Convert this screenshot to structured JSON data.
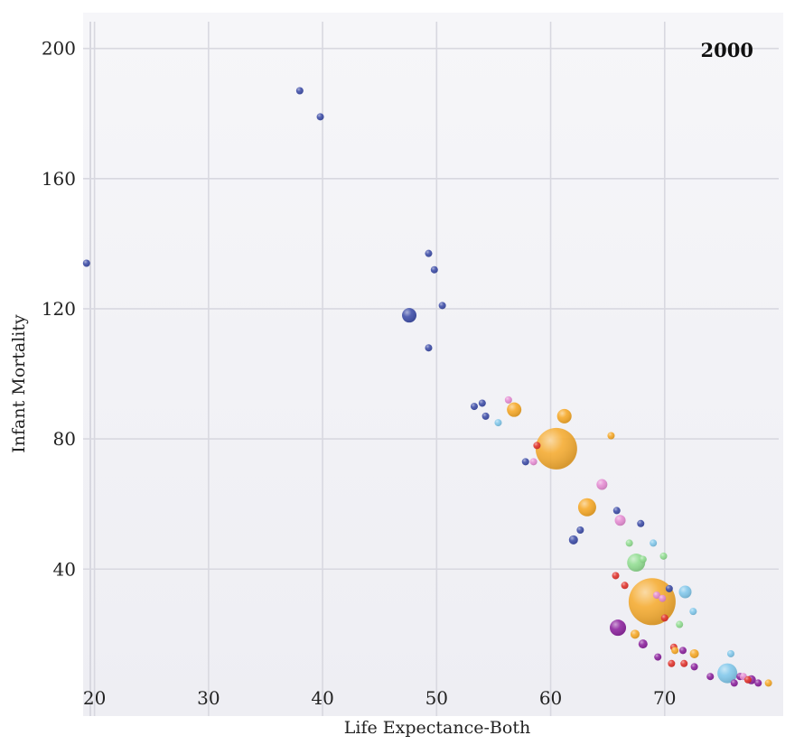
{
  "chart_data": {
    "type": "scatter",
    "title": "2000",
    "xlabel": "Life Expectance-Both",
    "ylabel": "Infant Mortality",
    "xlim": [
      19,
      80
    ],
    "ylim": [
      4,
      211
    ],
    "x_ticks": [
      20,
      30,
      40,
      50,
      60,
      70
    ],
    "y_ticks": [
      40,
      80,
      120,
      160,
      200
    ],
    "grid": true,
    "colors": {
      "blue": "#3a4aa6",
      "orange": "#f5a623",
      "red": "#e0302a",
      "pink": "#e58ad2",
      "lightblue": "#7ec6ea",
      "green": "#8fdc8f",
      "purple": "#8a1f9c",
      "plot_bg": "#f1f1f5",
      "grid": "#d8d8e0"
    },
    "points": [
      {
        "x": 19.3,
        "y": 134,
        "size": 4,
        "color": "blue"
      },
      {
        "x": 38.0,
        "y": 187,
        "size": 4,
        "color": "blue"
      },
      {
        "x": 39.8,
        "y": 179,
        "size": 4,
        "color": "blue"
      },
      {
        "x": 47.6,
        "y": 118,
        "size": 8,
        "color": "blue"
      },
      {
        "x": 49.3,
        "y": 137,
        "size": 4,
        "color": "blue"
      },
      {
        "x": 49.8,
        "y": 132,
        "size": 4,
        "color": "blue"
      },
      {
        "x": 50.5,
        "y": 121,
        "size": 4,
        "color": "blue"
      },
      {
        "x": 49.3,
        "y": 108,
        "size": 4,
        "color": "blue"
      },
      {
        "x": 53.3,
        "y": 90,
        "size": 4,
        "color": "blue"
      },
      {
        "x": 54.0,
        "y": 91,
        "size": 4,
        "color": "blue"
      },
      {
        "x": 54.3,
        "y": 87,
        "size": 4,
        "color": "blue"
      },
      {
        "x": 55.4,
        "y": 85,
        "size": 4,
        "color": "lightblue"
      },
      {
        "x": 56.3,
        "y": 92,
        "size": 4,
        "color": "pink"
      },
      {
        "x": 56.8,
        "y": 89,
        "size": 8,
        "color": "orange"
      },
      {
        "x": 61.2,
        "y": 87,
        "size": 8,
        "color": "orange"
      },
      {
        "x": 60.5,
        "y": 77,
        "size": 23,
        "color": "orange"
      },
      {
        "x": 58.8,
        "y": 78,
        "size": 4,
        "color": "red"
      },
      {
        "x": 57.8,
        "y": 73,
        "size": 4,
        "color": "blue"
      },
      {
        "x": 58.5,
        "y": 73,
        "size": 4,
        "color": "pink"
      },
      {
        "x": 65.3,
        "y": 81,
        "size": 4,
        "color": "orange"
      },
      {
        "x": 64.5,
        "y": 66,
        "size": 6,
        "color": "pink"
      },
      {
        "x": 63.2,
        "y": 59,
        "size": 10,
        "color": "orange"
      },
      {
        "x": 65.8,
        "y": 58,
        "size": 4,
        "color": "blue"
      },
      {
        "x": 66.1,
        "y": 55,
        "size": 6,
        "color": "pink"
      },
      {
        "x": 67.9,
        "y": 54,
        "size": 4,
        "color": "blue"
      },
      {
        "x": 62.6,
        "y": 52,
        "size": 4,
        "color": "blue"
      },
      {
        "x": 62.0,
        "y": 49,
        "size": 5,
        "color": "blue"
      },
      {
        "x": 66.9,
        "y": 48,
        "size": 4,
        "color": "green"
      },
      {
        "x": 69.0,
        "y": 48,
        "size": 4,
        "color": "lightblue"
      },
      {
        "x": 69.9,
        "y": 44,
        "size": 4,
        "color": "green"
      },
      {
        "x": 67.5,
        "y": 42,
        "size": 10,
        "color": "green"
      },
      {
        "x": 68.1,
        "y": 43,
        "size": 4,
        "color": "green"
      },
      {
        "x": 65.7,
        "y": 38,
        "size": 4,
        "color": "red"
      },
      {
        "x": 66.5,
        "y": 35,
        "size": 4,
        "color": "red"
      },
      {
        "x": 70.4,
        "y": 34,
        "size": 4,
        "color": "blue"
      },
      {
        "x": 71.8,
        "y": 33,
        "size": 7,
        "color": "lightblue"
      },
      {
        "x": 69.3,
        "y": 32,
        "size": 4,
        "color": "pink"
      },
      {
        "x": 69.8,
        "y": 31,
        "size": 4,
        "color": "pink"
      },
      {
        "x": 68.9,
        "y": 30,
        "size": 26,
        "color": "orange"
      },
      {
        "x": 72.5,
        "y": 27,
        "size": 4,
        "color": "lightblue"
      },
      {
        "x": 70.0,
        "y": 25,
        "size": 4,
        "color": "red"
      },
      {
        "x": 71.3,
        "y": 23,
        "size": 4,
        "color": "green"
      },
      {
        "x": 65.9,
        "y": 22,
        "size": 9,
        "color": "purple"
      },
      {
        "x": 67.4,
        "y": 20,
        "size": 5,
        "color": "orange"
      },
      {
        "x": 68.1,
        "y": 17,
        "size": 5,
        "color": "purple"
      },
      {
        "x": 70.8,
        "y": 16,
        "size": 4,
        "color": "red"
      },
      {
        "x": 70.9,
        "y": 15,
        "size": 4,
        "color": "orange"
      },
      {
        "x": 71.6,
        "y": 15,
        "size": 4,
        "color": "purple"
      },
      {
        "x": 72.6,
        "y": 14,
        "size": 5,
        "color": "orange"
      },
      {
        "x": 69.4,
        "y": 13,
        "size": 4,
        "color": "purple"
      },
      {
        "x": 75.8,
        "y": 14,
        "size": 4,
        "color": "lightblue"
      },
      {
        "x": 70.6,
        "y": 11,
        "size": 4,
        "color": "red"
      },
      {
        "x": 71.7,
        "y": 11,
        "size": 4,
        "color": "red"
      },
      {
        "x": 72.6,
        "y": 10,
        "size": 4,
        "color": "purple"
      },
      {
        "x": 75.5,
        "y": 8,
        "size": 11,
        "color": "lightblue"
      },
      {
        "x": 74.0,
        "y": 7,
        "size": 4,
        "color": "purple"
      },
      {
        "x": 76.6,
        "y": 7,
        "size": 4,
        "color": "purple"
      },
      {
        "x": 76.9,
        "y": 7,
        "size": 4,
        "color": "pink"
      },
      {
        "x": 77.3,
        "y": 6,
        "size": 4,
        "color": "red"
      },
      {
        "x": 77.6,
        "y": 6,
        "size": 5,
        "color": "purple"
      },
      {
        "x": 78.2,
        "y": 5,
        "size": 4,
        "color": "purple"
      },
      {
        "x": 79.1,
        "y": 5,
        "size": 4,
        "color": "orange"
      },
      {
        "x": 76.1,
        "y": 5,
        "size": 4,
        "color": "purple"
      }
    ]
  }
}
